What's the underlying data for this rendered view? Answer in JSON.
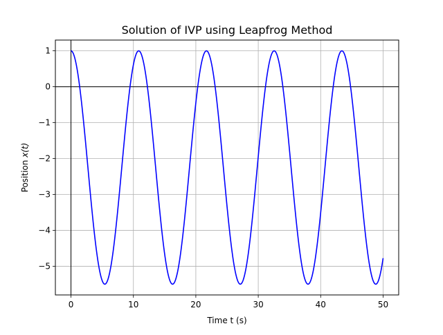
{
  "chart_data": {
    "type": "line",
    "title": "Solution of IVP using Leapfrog Method",
    "xlabel": "Time t (s)",
    "ylabel_prefix": "Position ",
    "ylabel_math": "x(t)",
    "xlim": [
      -2.5,
      52.5
    ],
    "ylim": [
      -5.8,
      1.3
    ],
    "xticks": [
      0,
      10,
      20,
      30,
      40,
      50
    ],
    "yticks": [
      1,
      0,
      -1,
      -2,
      -3,
      -4,
      -5
    ],
    "ytick_labels": [
      "1",
      "0",
      "−1",
      "−2",
      "−3",
      "−4",
      "−5"
    ],
    "grid": true,
    "reference_lines": {
      "x": 0,
      "y": 0,
      "color": "#000000"
    },
    "series": [
      {
        "color": "#0000ff",
        "model": {
          "description_of_curve": "periodic oscillation sampled from plot",
          "offset": -2.25,
          "amplitude": 3.25,
          "period": 10.85,
          "t_start": 0,
          "t_end": 50,
          "start_value": 1.0,
          "min_value": -5.5,
          "end_value": -5.0
        }
      }
    ]
  }
}
